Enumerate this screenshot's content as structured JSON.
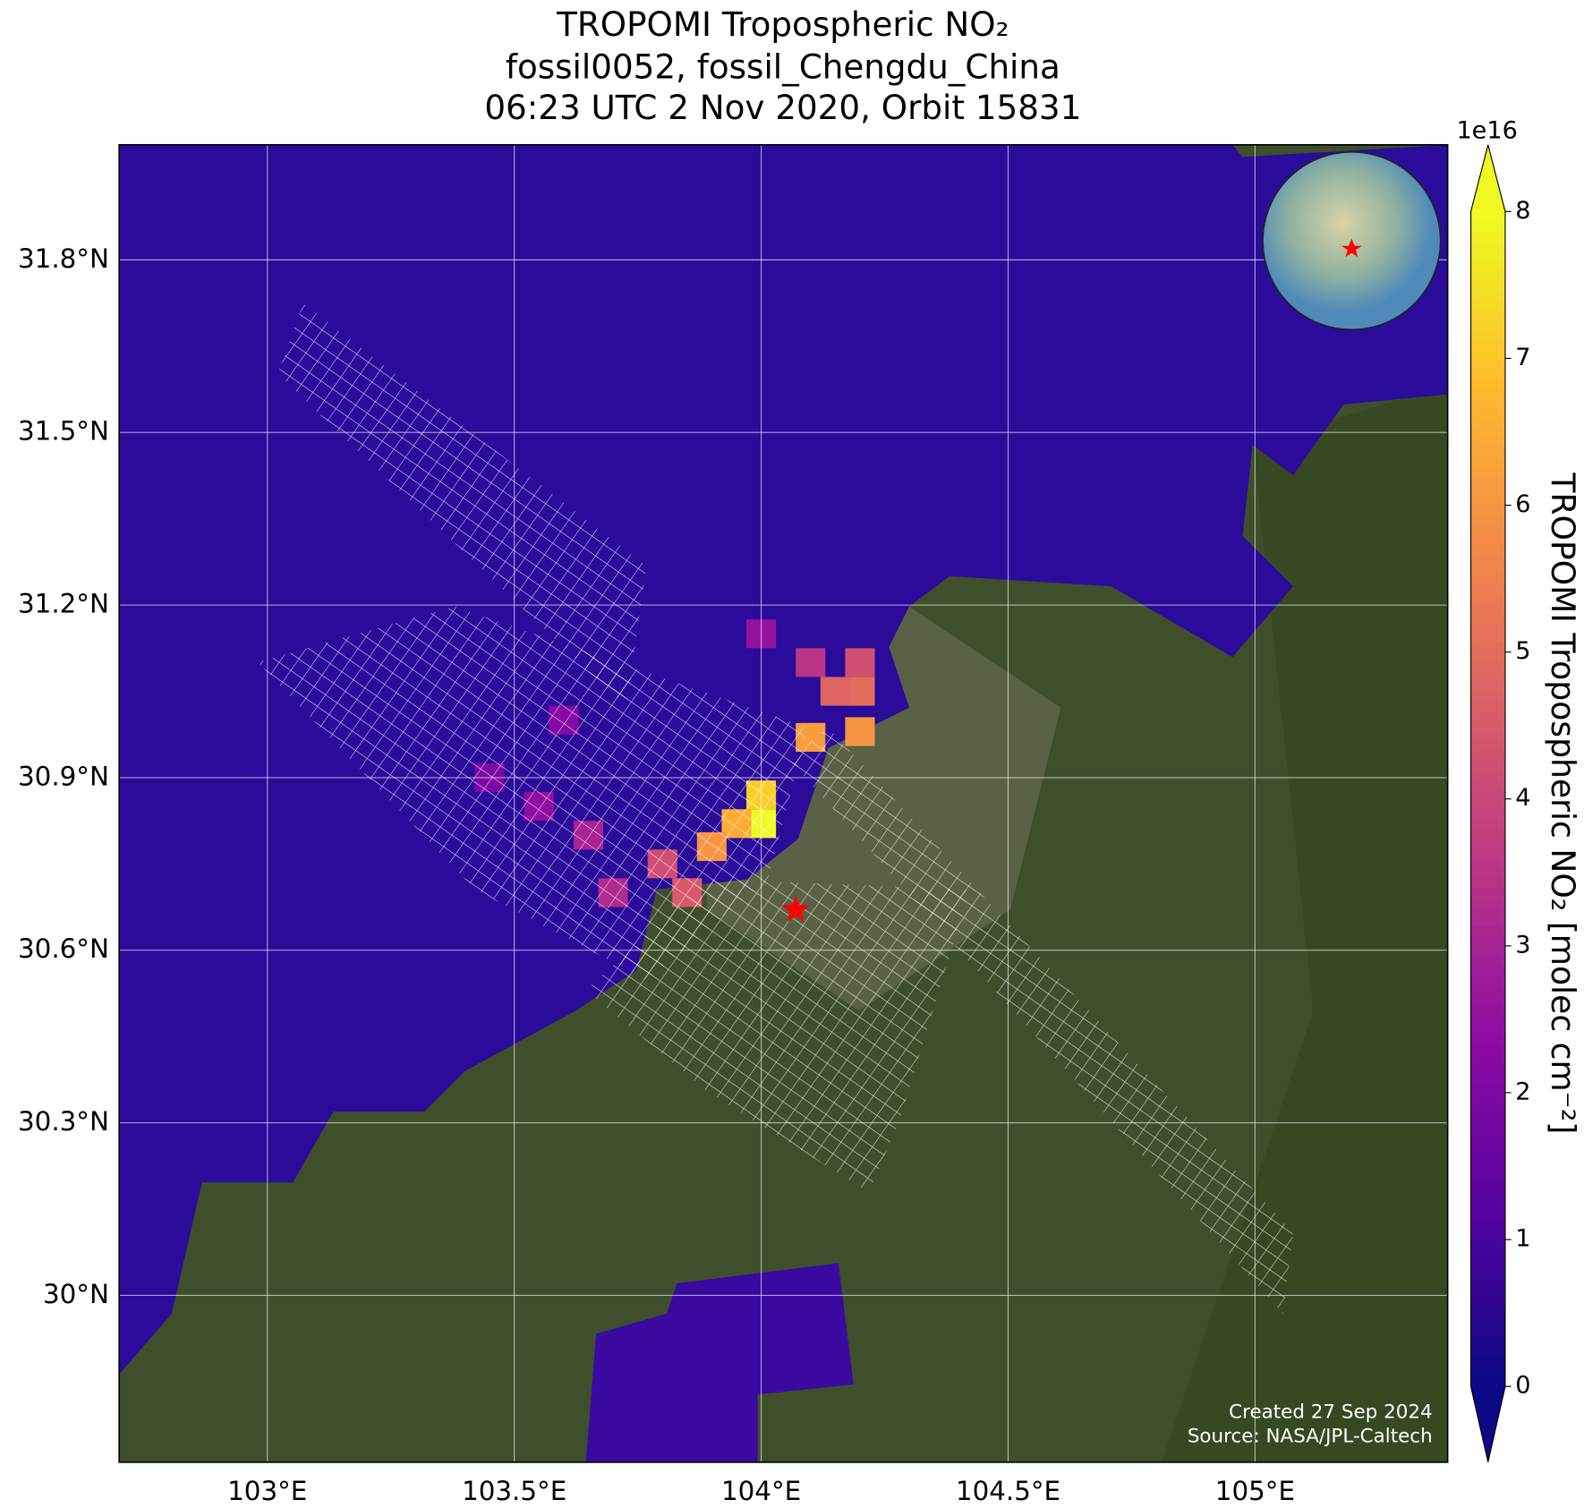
{
  "chart_data": {
    "type": "map",
    "title": [
      "TROPOMI Tropospheric NO₂",
      "fossil0052, fossil_Chengdu_China",
      "06:23 UTC 2 Nov 2020, Orbit 15831"
    ],
    "xlim": [
      102.7,
      105.39
    ],
    "ylim": [
      29.71,
      32.0
    ],
    "xticks": [
      {
        "value": 103,
        "label": "103°E"
      },
      {
        "value": 103.5,
        "label": "103.5°E"
      },
      {
        "value": 104,
        "label": "104°E"
      },
      {
        "value": 104.5,
        "label": "104.5°E"
      },
      {
        "value": 105,
        "label": "105°E"
      }
    ],
    "yticks": [
      {
        "value": 30,
        "label": "30°N"
      },
      {
        "value": 30.3,
        "label": "30.3°N"
      },
      {
        "value": 30.6,
        "label": "30.6°N"
      },
      {
        "value": 30.9,
        "label": "30.9°N"
      },
      {
        "value": 31.2,
        "label": "31.2°N"
      },
      {
        "value": 31.5,
        "label": "31.5°N"
      },
      {
        "value": 31.8,
        "label": "31.8°N"
      }
    ],
    "grid": true,
    "target": {
      "lon": 104.07,
      "lat": 30.67,
      "color": "#ff0000"
    },
    "pixels": {
      "lon": [
        104.0,
        104.0,
        103.95,
        103.9,
        104.1,
        104.2,
        104.2,
        104.15,
        104.2,
        103.85,
        103.8,
        104.1,
        103.7,
        103.65,
        103.55,
        103.45,
        103.6,
        104.0
      ],
      "lat": [
        30.82,
        30.87,
        30.82,
        30.78,
        30.97,
        30.98,
        31.05,
        31.05,
        31.1,
        30.7,
        30.75,
        31.1,
        30.7,
        30.8,
        30.85,
        30.9,
        31.0,
        31.15
      ],
      "values": [
        8,
        7.2,
        6.5,
        6.0,
        6.2,
        6.0,
        5.0,
        4.8,
        4.2,
        4.5,
        4.2,
        3.5,
        3.2,
        3.0,
        2.4,
        2.0,
        2.2,
        2.5
      ]
    },
    "colorbar": {
      "label": "TROPOMI Tropospheric NO₂ [molec cm⁻²]",
      "multiplier": "1e16",
      "lim": [
        0,
        8
      ],
      "ticks": [
        0,
        1,
        2,
        3,
        4,
        5,
        6,
        7,
        8
      ],
      "colormap": "plasma"
    },
    "credits": [
      "Created 27 Sep 2024",
      "Source: NASA/JPL-Caltech"
    ]
  }
}
